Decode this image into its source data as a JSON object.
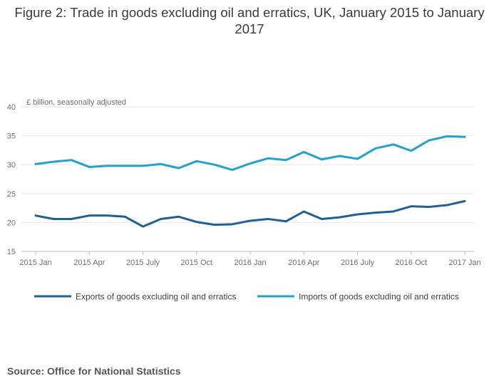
{
  "title": "Figure 2: Trade in goods excluding oil and erratics, UK, January 2015 to January 2017",
  "source": "Source: Office for National Statistics",
  "chart_data": {
    "type": "line",
    "title": "Figure 2: Trade in goods excluding oil and erratics, UK, January 2015 to January 2017",
    "ylabel": "£ billion, seasonally adjusted",
    "xlabel": "",
    "ylim": [
      15,
      40
    ],
    "yticks": [
      15,
      20,
      25,
      30,
      35,
      40
    ],
    "x": [
      "2015 Jan",
      "2015 Feb",
      "2015 Mar",
      "2015 Apr",
      "2015 May",
      "2015 Jun",
      "2015 July",
      "2015 Aug",
      "2015 Sep",
      "2015 Oct",
      "2015 Nov",
      "2015 Dec",
      "2016 Jan",
      "2016 Feb",
      "2016 Mar",
      "2016 Apr",
      "2016 May",
      "2016 Jun",
      "2016 July",
      "2016 Aug",
      "2016 Sep",
      "2016 Oct",
      "2016 Nov",
      "2016 Dec",
      "2017 Jan"
    ],
    "xtick_labels": [
      {
        "index": 0,
        "label": "2015 Jan"
      },
      {
        "index": 3,
        "label": "2015 Apr"
      },
      {
        "index": 6,
        "label": "2015 July"
      },
      {
        "index": 9,
        "label": "2015 Oct"
      },
      {
        "index": 12,
        "label": "2016 Jan"
      },
      {
        "index": 15,
        "label": "2016 Apr"
      },
      {
        "index": 18,
        "label": "2016 July"
      },
      {
        "index": 21,
        "label": "2016 Oct"
      },
      {
        "index": 24,
        "label": "2017 Jan"
      }
    ],
    "series": [
      {
        "name": "Exports of goods excluding oil and erratics",
        "color": "#206095",
        "values": [
          21.2,
          20.6,
          20.6,
          21.2,
          21.2,
          21.0,
          19.3,
          20.6,
          21.0,
          20.1,
          19.6,
          19.7,
          20.3,
          20.6,
          20.2,
          21.9,
          20.6,
          20.9,
          21.4,
          21.7,
          21.9,
          22.8,
          22.7,
          23.0,
          23.7
        ]
      },
      {
        "name": "Imports of goods excluding oil and erratics",
        "color": "#27a0cc",
        "values": [
          30.1,
          30.5,
          30.8,
          29.6,
          29.8,
          29.8,
          29.8,
          30.1,
          29.4,
          30.6,
          30.0,
          29.1,
          30.2,
          31.1,
          30.8,
          32.2,
          30.9,
          31.5,
          31.0,
          32.8,
          33.5,
          32.4,
          34.2,
          34.9,
          34.8
        ]
      }
    ],
    "grid": true,
    "legend_position": "bottom"
  }
}
